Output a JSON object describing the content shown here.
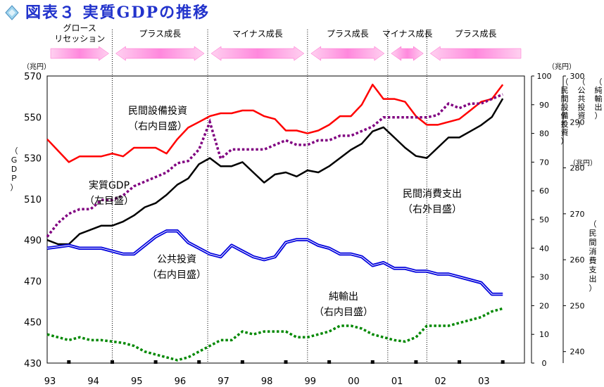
{
  "chart_data": {
    "type": "line",
    "title": "図表３ 実質GDPの推移",
    "x_ticks": [
      "93",
      "94",
      "95",
      "96",
      "97",
      "98",
      "99",
      "00",
      "01",
      "02",
      "03"
    ],
    "x_range": [
      1993.0,
      2004.0
    ],
    "axes": {
      "left": {
        "unit": "（兆円）",
        "label": "（ＧＤＰ）",
        "ticks": [
          430,
          450,
          470,
          490,
          510,
          530,
          550,
          570
        ],
        "range": [
          430,
          570
        ]
      },
      "right_inner": {
        "unit": "（兆円）",
        "ticks": [
          0,
          10,
          20,
          30,
          40,
          50,
          60,
          70,
          80,
          90,
          100
        ],
        "range": [
          0,
          100
        ],
        "labels": [
          "（民間設備投資）",
          "（公共投資）",
          "（純輸出）"
        ]
      },
      "right_outer": {
        "unit": "（兆円）",
        "label": "（民間消費支出）",
        "ticks": [
          240,
          250,
          260,
          270,
          280,
          290,
          300
        ],
        "range": [
          237.5,
          300
        ]
      }
    },
    "phases": [
      {
        "label": "グロース\nリセッション",
        "start": 1993.0,
        "end": 1994.5,
        "direction": "right"
      },
      {
        "label": "プラス成長",
        "start": 1994.5,
        "end": 1996.7,
        "direction": "both"
      },
      {
        "label": "マイナス成長",
        "start": 1996.7,
        "end": 1999.0,
        "direction": "both"
      },
      {
        "label": "プラス成長",
        "start": 1999.0,
        "end": 2000.85,
        "direction": "both"
      },
      {
        "label": "マイナス成長",
        "start": 2000.85,
        "end": 2001.75,
        "direction": "both"
      },
      {
        "label": "プラス成長",
        "start": 2001.75,
        "end": 2004.0,
        "direction": "left"
      }
    ],
    "series": [
      {
        "name": "実質GDP",
        "axis_note": "（左目盛）",
        "color": "#000000",
        "style": "solid",
        "axis": "left",
        "points": [
          [
            1993.0,
            490
          ],
          [
            1993.25,
            488
          ],
          [
            1993.5,
            488
          ],
          [
            1993.75,
            493
          ],
          [
            1994.0,
            495
          ],
          [
            1994.25,
            497
          ],
          [
            1994.5,
            497
          ],
          [
            1994.75,
            499
          ],
          [
            1995.0,
            502
          ],
          [
            1995.25,
            506
          ],
          [
            1995.5,
            508
          ],
          [
            1995.75,
            512
          ],
          [
            1996.0,
            517
          ],
          [
            1996.25,
            520
          ],
          [
            1996.5,
            527
          ],
          [
            1996.75,
            530
          ],
          [
            1997.0,
            526
          ],
          [
            1997.25,
            526
          ],
          [
            1997.5,
            528
          ],
          [
            1997.75,
            523
          ],
          [
            1998.0,
            518
          ],
          [
            1998.25,
            522
          ],
          [
            1998.5,
            523
          ],
          [
            1998.75,
            521
          ],
          [
            1999.0,
            524
          ],
          [
            1999.25,
            523
          ],
          [
            1999.5,
            526
          ],
          [
            1999.75,
            530
          ],
          [
            2000.0,
            534
          ],
          [
            2000.25,
            537
          ],
          [
            2000.5,
            543
          ],
          [
            2000.75,
            545
          ],
          [
            2001.0,
            540
          ],
          [
            2001.25,
            535
          ],
          [
            2001.5,
            531
          ],
          [
            2001.75,
            530
          ],
          [
            2002.0,
            535
          ],
          [
            2002.25,
            540
          ],
          [
            2002.5,
            540
          ],
          [
            2002.75,
            543
          ],
          [
            2003.0,
            546
          ],
          [
            2003.25,
            550
          ],
          [
            2003.5,
            559
          ]
        ]
      },
      {
        "name": "民間設備投資",
        "axis_note": "（右内目盛）",
        "color": "#ff0000",
        "style": "solid",
        "axis": "right_inner",
        "points": [
          [
            1993.0,
            78
          ],
          [
            1993.25,
            74
          ],
          [
            1993.5,
            70
          ],
          [
            1993.75,
            72
          ],
          [
            1994.0,
            72
          ],
          [
            1994.25,
            72
          ],
          [
            1994.5,
            73
          ],
          [
            1994.75,
            72
          ],
          [
            1995.0,
            75
          ],
          [
            1995.25,
            75
          ],
          [
            1995.5,
            75
          ],
          [
            1995.75,
            73
          ],
          [
            1996.0,
            78
          ],
          [
            1996.25,
            82
          ],
          [
            1996.5,
            84
          ],
          [
            1996.75,
            86
          ],
          [
            1997.0,
            87
          ],
          [
            1997.25,
            87
          ],
          [
            1997.5,
            88
          ],
          [
            1997.75,
            88
          ],
          [
            1998.0,
            86
          ],
          [
            1998.25,
            85
          ],
          [
            1998.5,
            81
          ],
          [
            1998.75,
            81
          ],
          [
            1999.0,
            80
          ],
          [
            1999.25,
            81
          ],
          [
            1999.5,
            83
          ],
          [
            1999.75,
            86
          ],
          [
            2000.0,
            86
          ],
          [
            2000.25,
            90
          ],
          [
            2000.5,
            97
          ],
          [
            2000.75,
            92
          ],
          [
            2001.0,
            92
          ],
          [
            2001.25,
            91
          ],
          [
            2001.5,
            86
          ],
          [
            2001.75,
            83
          ],
          [
            2002.0,
            83
          ],
          [
            2002.25,
            84
          ],
          [
            2002.5,
            85
          ],
          [
            2002.75,
            88
          ],
          [
            2003.0,
            91
          ],
          [
            2003.25,
            92
          ],
          [
            2003.5,
            97
          ]
        ]
      },
      {
        "name": "民間消費支出",
        "axis_note": "（右外目盛）",
        "color": "#800080",
        "style": "dotted",
        "axis": "right_outer",
        "points": [
          [
            1993.0,
            265
          ],
          [
            1993.25,
            268
          ],
          [
            1993.5,
            270
          ],
          [
            1993.75,
            271
          ],
          [
            1994.0,
            271
          ],
          [
            1994.25,
            273
          ],
          [
            1994.5,
            273
          ],
          [
            1994.75,
            274
          ],
          [
            1995.0,
            276
          ],
          [
            1995.25,
            277
          ],
          [
            1995.5,
            278
          ],
          [
            1995.75,
            279
          ],
          [
            1996.0,
            281
          ],
          [
            1996.25,
            281.5
          ],
          [
            1996.5,
            284
          ],
          [
            1996.75,
            290
          ],
          [
            1997.0,
            282
          ],
          [
            1997.25,
            284
          ],
          [
            1997.5,
            284
          ],
          [
            1997.75,
            284
          ],
          [
            1998.0,
            284
          ],
          [
            1998.25,
            285
          ],
          [
            1998.5,
            286
          ],
          [
            1998.75,
            285
          ],
          [
            1999.0,
            285
          ],
          [
            1999.25,
            286
          ],
          [
            1999.5,
            286
          ],
          [
            1999.75,
            287
          ],
          [
            2000.0,
            287
          ],
          [
            2000.25,
            288
          ],
          [
            2000.5,
            289
          ],
          [
            2000.75,
            291
          ],
          [
            2001.0,
            291
          ],
          [
            2001.25,
            291
          ],
          [
            2001.5,
            291
          ],
          [
            2001.75,
            291
          ],
          [
            2002.0,
            291.5
          ],
          [
            2002.25,
            294
          ],
          [
            2002.5,
            293
          ],
          [
            2002.75,
            294
          ],
          [
            2003.0,
            294
          ],
          [
            2003.25,
            295
          ],
          [
            2003.5,
            296
          ]
        ]
      },
      {
        "name": "公共投資",
        "axis_note": "（右内目盛）",
        "color": "#0000dd",
        "style": "double",
        "axis": "right_inner",
        "points": [
          [
            1993.0,
            40
          ],
          [
            1993.25,
            40.5
          ],
          [
            1993.5,
            41
          ],
          [
            1993.75,
            40
          ],
          [
            1994.0,
            40
          ],
          [
            1994.25,
            40
          ],
          [
            1994.5,
            39
          ],
          [
            1994.75,
            38
          ],
          [
            1995.0,
            38
          ],
          [
            1995.25,
            41
          ],
          [
            1995.5,
            44
          ],
          [
            1995.75,
            46
          ],
          [
            1996.0,
            46
          ],
          [
            1996.25,
            42
          ],
          [
            1996.5,
            40
          ],
          [
            1996.75,
            38
          ],
          [
            1997.0,
            37
          ],
          [
            1997.25,
            41
          ],
          [
            1997.5,
            39
          ],
          [
            1997.75,
            37
          ],
          [
            1998.0,
            36
          ],
          [
            1998.25,
            37
          ],
          [
            1998.5,
            42
          ],
          [
            1998.75,
            43
          ],
          [
            1999.0,
            43
          ],
          [
            1999.25,
            41
          ],
          [
            1999.5,
            40
          ],
          [
            1999.75,
            38
          ],
          [
            2000.0,
            38
          ],
          [
            2000.25,
            37
          ],
          [
            2000.5,
            34
          ],
          [
            2000.75,
            35
          ],
          [
            2001.0,
            33
          ],
          [
            2001.25,
            33
          ],
          [
            2001.5,
            32
          ],
          [
            2001.75,
            32
          ],
          [
            2002.0,
            31
          ],
          [
            2002.25,
            31
          ],
          [
            2002.5,
            30
          ],
          [
            2002.75,
            29
          ],
          [
            2003.0,
            28
          ],
          [
            2003.25,
            24
          ],
          [
            2003.5,
            24
          ]
        ]
      },
      {
        "name": "純輸出",
        "axis_note": "（右内目盛）",
        "color": "#008800",
        "style": "dotted",
        "axis": "right_inner",
        "points": [
          [
            1993.0,
            10
          ],
          [
            1993.25,
            9
          ],
          [
            1993.5,
            8
          ],
          [
            1993.75,
            9
          ],
          [
            1994.0,
            8
          ],
          [
            1994.25,
            8
          ],
          [
            1994.5,
            7.5
          ],
          [
            1994.75,
            7
          ],
          [
            1995.0,
            6
          ],
          [
            1995.25,
            4
          ],
          [
            1995.5,
            3
          ],
          [
            1995.75,
            2
          ],
          [
            1996.0,
            1
          ],
          [
            1996.25,
            2
          ],
          [
            1996.5,
            4
          ],
          [
            1996.75,
            6
          ],
          [
            1997.0,
            8
          ],
          [
            1997.25,
            8
          ],
          [
            1997.5,
            11
          ],
          [
            1997.75,
            10
          ],
          [
            1998.0,
            11
          ],
          [
            1998.25,
            11
          ],
          [
            1998.5,
            11
          ],
          [
            1998.75,
            9
          ],
          [
            1999.0,
            9
          ],
          [
            1999.25,
            10
          ],
          [
            1999.5,
            11
          ],
          [
            1999.75,
            13
          ],
          [
            2000.0,
            13
          ],
          [
            2000.25,
            12
          ],
          [
            2000.5,
            10
          ],
          [
            2000.75,
            9
          ],
          [
            2001.0,
            8
          ],
          [
            2001.25,
            7.5
          ],
          [
            2001.5,
            9
          ],
          [
            2001.75,
            13
          ],
          [
            2002.0,
            13
          ],
          [
            2002.25,
            13
          ],
          [
            2002.5,
            14
          ],
          [
            2002.75,
            15
          ],
          [
            2003.0,
            16
          ],
          [
            2003.25,
            18
          ],
          [
            2003.5,
            19
          ]
        ]
      }
    ],
    "annotations": [
      {
        "series": "民間設備投資",
        "lines": [
          "民間設備投資",
          "（右内目盛）"
        ]
      },
      {
        "series": "実質GDP",
        "lines": [
          "実質GDP",
          "（左目盛）"
        ]
      },
      {
        "series": "民間消費支出",
        "lines": [
          "民間消費支出",
          "（右外目盛）"
        ]
      },
      {
        "series": "公共投資",
        "lines": [
          "公共投資",
          "（右内目盛）"
        ]
      },
      {
        "series": "純輸出",
        "lines": [
          "純輸出",
          "（右内目盛）"
        ]
      }
    ]
  }
}
